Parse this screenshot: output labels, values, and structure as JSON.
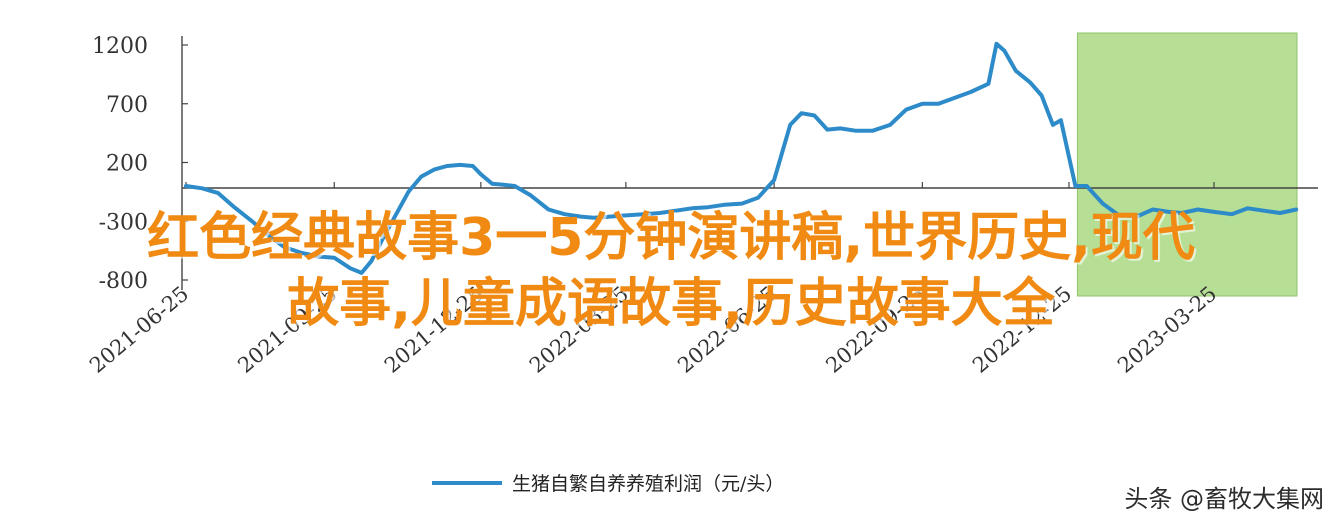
{
  "chart_data": {
    "type": "line",
    "legend": [
      "生猪自繁自养养殖利润（元/头）"
    ],
    "legend_position": "bottom",
    "ylim": [
      -800,
      1200
    ],
    "y_ticks": [
      1200,
      700,
      200,
      -300,
      -800
    ],
    "x_ticks": [
      "2021-06-25",
      "2021-09-25",
      "2021-12-25",
      "2022-03-25",
      "2022-06-25",
      "2022-09-25",
      "2022-12-25",
      "2023-03-25"
    ],
    "grid": false,
    "highlight_region": {
      "from": "2022-12-29",
      "to": "2023-05-15",
      "color": "#a9d982"
    },
    "series": [
      {
        "name": "生猪自繁自养养殖利润（元/头）",
        "color": "#2e8bc9",
        "points": [
          [
            "2021-06-25",
            0
          ],
          [
            "2021-07-05",
            -20
          ],
          [
            "2021-07-15",
            -60
          ],
          [
            "2021-07-25",
            -180
          ],
          [
            "2021-08-05",
            -300
          ],
          [
            "2021-08-15",
            -420
          ],
          [
            "2021-08-25",
            -520
          ],
          [
            "2021-09-05",
            -570
          ],
          [
            "2021-09-15",
            -600
          ],
          [
            "2021-09-25",
            -610
          ],
          [
            "2021-10-05",
            -700
          ],
          [
            "2021-10-12",
            -740
          ],
          [
            "2021-10-18",
            -640
          ],
          [
            "2021-10-25",
            -450
          ],
          [
            "2021-11-02",
            -250
          ],
          [
            "2021-11-10",
            -50
          ],
          [
            "2021-11-18",
            80
          ],
          [
            "2021-11-26",
            140
          ],
          [
            "2021-12-04",
            170
          ],
          [
            "2021-12-12",
            180
          ],
          [
            "2021-12-20",
            170
          ],
          [
            "2021-12-25",
            100
          ],
          [
            "2022-01-01",
            20
          ],
          [
            "2022-01-08",
            10
          ],
          [
            "2022-01-15",
            0
          ],
          [
            "2022-01-25",
            -80
          ],
          [
            "2022-02-05",
            -200
          ],
          [
            "2022-02-15",
            -240
          ],
          [
            "2022-02-25",
            -260
          ],
          [
            "2022-03-05",
            -270
          ],
          [
            "2022-03-15",
            -260
          ],
          [
            "2022-03-25",
            -250
          ],
          [
            "2022-04-05",
            -240
          ],
          [
            "2022-04-15",
            -230
          ],
          [
            "2022-04-25",
            -210
          ],
          [
            "2022-05-05",
            -190
          ],
          [
            "2022-05-15",
            -180
          ],
          [
            "2022-05-25",
            -160
          ],
          [
            "2022-06-05",
            -150
          ],
          [
            "2022-06-15",
            -100
          ],
          [
            "2022-06-25",
            50
          ],
          [
            "2022-07-05",
            520
          ],
          [
            "2022-07-12",
            620
          ],
          [
            "2022-07-20",
            600
          ],
          [
            "2022-07-28",
            480
          ],
          [
            "2022-08-05",
            490
          ],
          [
            "2022-08-15",
            470
          ],
          [
            "2022-08-25",
            470
          ],
          [
            "2022-09-05",
            520
          ],
          [
            "2022-09-15",
            650
          ],
          [
            "2022-09-25",
            700
          ],
          [
            "2022-10-05",
            700
          ],
          [
            "2022-10-15",
            750
          ],
          [
            "2022-10-25",
            800
          ],
          [
            "2022-11-05",
            870
          ],
          [
            "2022-11-10",
            1210
          ],
          [
            "2022-11-15",
            1150
          ],
          [
            "2022-11-22",
            980
          ],
          [
            "2022-12-01",
            880
          ],
          [
            "2022-12-08",
            770
          ],
          [
            "2022-12-15",
            520
          ],
          [
            "2022-12-20",
            560
          ],
          [
            "2022-12-29",
            0
          ],
          [
            "2023-01-05",
            0
          ],
          [
            "2023-01-15",
            -150
          ],
          [
            "2023-01-25",
            -250
          ],
          [
            "2023-02-05",
            -260
          ],
          [
            "2023-02-15",
            -200
          ],
          [
            "2023-02-25",
            -220
          ],
          [
            "2023-03-05",
            -230
          ],
          [
            "2023-03-15",
            -200
          ],
          [
            "2023-03-25",
            -220
          ],
          [
            "2023-04-05",
            -240
          ],
          [
            "2023-04-15",
            -190
          ],
          [
            "2023-04-25",
            -210
          ],
          [
            "2023-05-05",
            -230
          ],
          [
            "2023-05-15",
            -200
          ]
        ]
      }
    ]
  },
  "overlay": {
    "line1": "红色经典故事3一5分钟演讲稿,世界历史,现代",
    "line2": "故事,儿童成语故事,历史故事大全"
  },
  "watermark": "头条 @畜牧大集网"
}
